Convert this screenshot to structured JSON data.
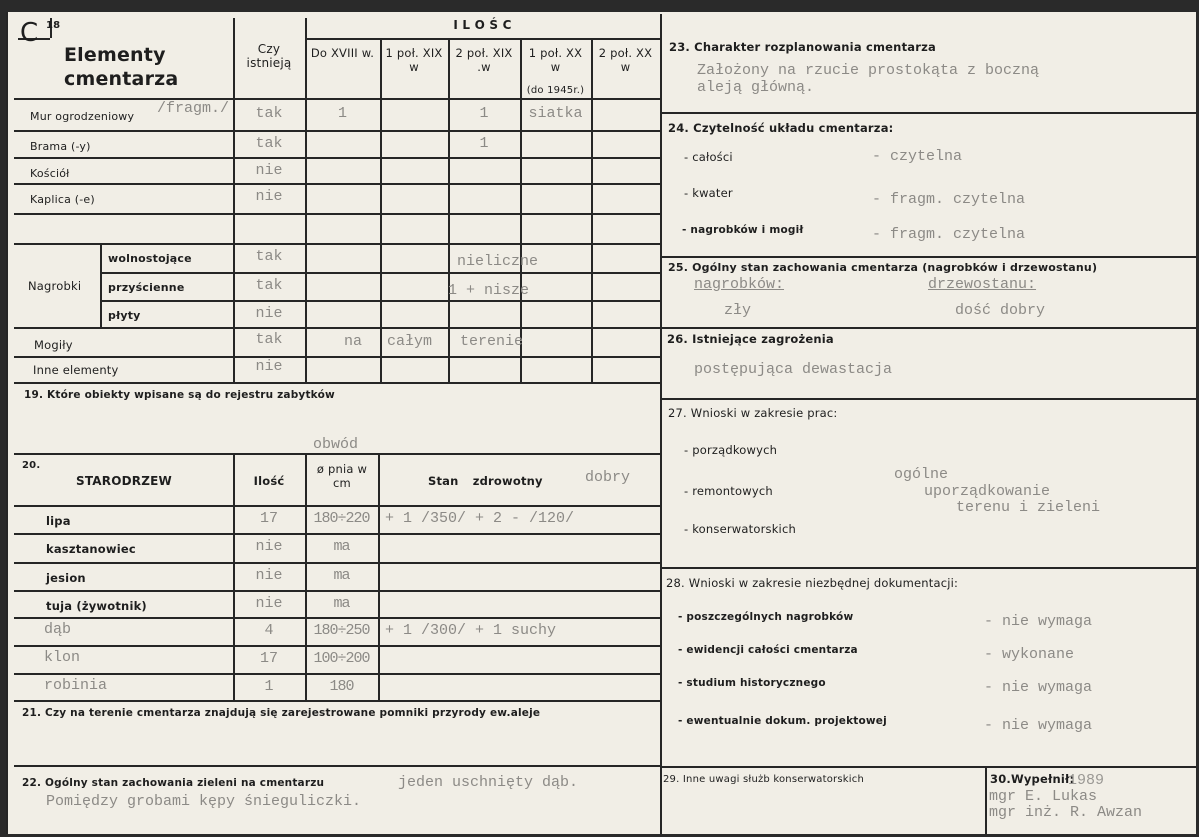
{
  "header": {
    "letter": "C",
    "number": "18",
    "title_line1": "Elementy",
    "title_line2": "cmentarza",
    "exists_col": "Czy istnieją",
    "quantity": "I L O Ś C",
    "periods": [
      "Do XVIII w.",
      "1 poł. XIX w",
      "2 poł. XIX .w",
      "1 poł. XX w",
      "2 poł. XX w"
    ],
    "period_note": "(do 1945r.)"
  },
  "elements": [
    {
      "label": "Mur ogrodzeniowy",
      "note": "/fragm./",
      "exists": "tak",
      "q": [
        "1",
        "",
        "1",
        "siatka",
        ""
      ]
    },
    {
      "label": "Brama (-y)",
      "exists": "tak",
      "q": [
        "",
        "",
        "1",
        "",
        ""
      ]
    },
    {
      "label": "Kościół",
      "exists": "nie",
      "q": [
        "",
        "",
        "",
        "",
        ""
      ]
    },
    {
      "label": "Kaplica (-e)",
      "exists": "nie",
      "q": [
        "",
        "",
        "",
        "",
        ""
      ]
    }
  ],
  "nagrobki": {
    "label": "Nagrobki",
    "rows": [
      {
        "label": "wolnostojące",
        "exists": "tak",
        "note": "nieliczne"
      },
      {
        "label": "przyścienne",
        "exists": "tak",
        "note": "1 + nisze"
      },
      {
        "label": "płyty",
        "exists": "nie",
        "note": ""
      }
    ]
  },
  "mogily": {
    "label": "Mogiły",
    "exists": "tak",
    "q": [
      "na",
      "całym",
      "terenie"
    ]
  },
  "inne": {
    "label": "Inne elementy",
    "exists": "nie"
  },
  "s19": {
    "label": "19. Które obiekty wpisane są do rejestru zabytków"
  },
  "s20": {
    "num": "20.",
    "title": "STARODRZEW",
    "col_qty": "Ilość",
    "col_diam": "ø pnia w cm",
    "col_diam_note": "obwód",
    "col_health": "Stan zdrowotny",
    "health_note": "dobry",
    "rows": [
      {
        "name": "lipa",
        "qty": "17",
        "diam": "180÷220",
        "health": "+ 1 /350/ + 2 - /120/",
        "typed": false
      },
      {
        "name": "kasztanowiec",
        "qty": "nie",
        "diam": "ma",
        "health": "",
        "typed": false
      },
      {
        "name": "jesion",
        "qty": "nie",
        "diam": "ma",
        "health": "",
        "typed": false
      },
      {
        "name": "tuja (żywotnik)",
        "qty": "nie",
        "diam": "ma",
        "health": "",
        "typed": false
      },
      {
        "name": "dąb",
        "qty": "4",
        "diam": "180÷250",
        "health": "+ 1 /300/ + 1 suchy",
        "typed": true
      },
      {
        "name": "klon",
        "qty": "17",
        "diam": "100÷200",
        "health": "",
        "typed": true
      },
      {
        "name": "robinia",
        "qty": "1",
        "diam": "180",
        "health": "",
        "typed": true
      }
    ]
  },
  "s21": {
    "label": "21. Czy na terenie cmentarza znajdują się zarejestrowane pomniki przyrody ew.aleje"
  },
  "s22": {
    "label": "22. Ogólny stan zachowania zieleni na cmentarzu",
    "value1": "jeden uschnięty dąb.",
    "value2": "Pomiędzy grobami kępy śnieguliczki."
  },
  "s23": {
    "label": "23. Charakter rozplanowania cmentarza",
    "value1": "Założony na rzucie prostokąta z boczną",
    "value2": "aleją główną."
  },
  "s24": {
    "label": "24. Czytelność układu cmentarza:",
    "items": [
      {
        "label": "- całości",
        "value": "- czytelna"
      },
      {
        "label": "- kwater",
        "value": "- fragm. czytelna"
      },
      {
        "label": "- nagrobków i mogił",
        "value": "- fragm. czytelna"
      }
    ]
  },
  "s25": {
    "label": "25. Ogólny stan zachowania cmentarza (nagrobków i drzewostanu)",
    "a_label": "nagrobków:",
    "a_value": "zły",
    "b_label": "drzewostanu:",
    "b_value": "dość dobry"
  },
  "s26": {
    "label": "26. Istniejące zagrożenia",
    "value": "postępująca dewastacja"
  },
  "s27": {
    "label": "27. Wnioski w zakresie prac:",
    "items": [
      "- porządkowych",
      "- remontowych",
      "- konserwatorskich"
    ],
    "value1": "ogólne",
    "value2": "uporządkowanie",
    "value3": "terenu i zieleni"
  },
  "s28": {
    "label": "28. Wnioski w zakresie niezbędnej dokumentacji:",
    "items": [
      {
        "label": "- poszczególnych nagrobków",
        "value": "- nie wymaga"
      },
      {
        "label": "- ewidencji całości cmentarza",
        "value": "- wykonane"
      },
      {
        "label": "- studium historycznego",
        "value": "- nie wymaga"
      },
      {
        "label": "- ewentualnie dokum. projektowej",
        "value": "- nie wymaga"
      }
    ]
  },
  "s29": {
    "label": "29. Inne uwagi służb konserwatorskich"
  },
  "s30": {
    "label": "30.Wypełnił:",
    "year": "1989",
    "name1": "mgr E. Lukas",
    "name2": "mgr inż. R. Awzan"
  }
}
